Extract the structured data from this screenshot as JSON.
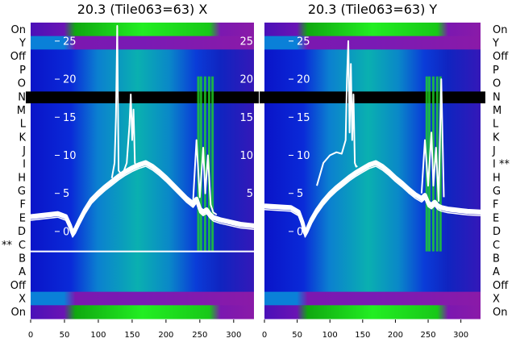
{
  "chart_data": [
    {
      "type": "heatmap",
      "title": "20.3 (Tile063=63) X",
      "row_labels": [
        "On",
        "Y",
        "Off",
        "P",
        "O",
        "N",
        "M",
        "L",
        "K",
        "J",
        "I",
        "H",
        "G",
        "F",
        "E",
        "D",
        "C",
        "B",
        "A",
        "Off",
        "X",
        "On"
      ],
      "row_markers": {
        "C": "**"
      },
      "x_ticks": [
        0,
        50,
        100,
        150,
        200,
        250,
        300
      ],
      "xlim": [
        0,
        330
      ],
      "overlay_y_ticks": [
        0,
        5,
        10,
        15,
        20,
        25
      ],
      "overlay_ylim": [
        -3.5,
        27
      ],
      "highlight_row": "C",
      "masked_row": "N",
      "series": [
        {
          "name": "",
          "x": [
            0,
            20,
            40,
            52,
            58,
            62,
            66,
            72,
            80,
            90,
            100,
            110,
            120,
            130,
            140,
            150,
            160,
            170,
            180,
            190,
            200,
            210,
            220,
            230,
            240,
            245,
            250,
            255,
            260,
            265,
            270,
            280,
            290,
            300,
            310,
            330
          ],
          "y": [
            2.0,
            2.2,
            2.4,
            2.0,
            0.8,
            -0.2,
            0.3,
            1.4,
            2.8,
            4.2,
            5.1,
            5.9,
            6.6,
            7.3,
            7.9,
            8.4,
            8.8,
            9.1,
            8.6,
            7.9,
            7.1,
            6.2,
            5.3,
            4.4,
            3.7,
            4.3,
            3.0,
            2.6,
            2.9,
            2.3,
            1.9,
            1.6,
            1.4,
            1.2,
            1.0,
            0.8
          ]
        },
        {
          "name": "",
          "x": [
            120,
            124,
            126,
            128,
            130,
            134,
            138,
            142,
            146,
            148,
            150,
            152,
            154,
            156,
            160
          ],
          "y": [
            7.0,
            9.0,
            15.0,
            27.0,
            8.0,
            7.5,
            8.0,
            9.0,
            14.0,
            18.0,
            12.0,
            16.0,
            9.0,
            8.5,
            8.8
          ]
        },
        {
          "name": "",
          "x": [
            240,
            245,
            250,
            255,
            258,
            262,
            266,
            270,
            275
          ],
          "y": [
            4.0,
            12.0,
            4.5,
            11.0,
            5.0,
            10.0,
            3.5,
            2.5,
            2.2
          ]
        }
      ],
      "band_colors": {
        "top_stripe": "#7b18b0",
        "middle": "#0b3fd8",
        "hot": "#22dd22",
        "mask": "#000000",
        "line": "#ffffff"
      }
    },
    {
      "type": "heatmap",
      "title": "20.3 (Tile063=63) Y",
      "row_labels": [
        "On",
        "Y",
        "Off",
        "P",
        "O",
        "N",
        "M",
        "L",
        "K",
        "J",
        "I",
        "H",
        "G",
        "F",
        "E",
        "D",
        "C",
        "B",
        "A",
        "Off",
        "X",
        "On"
      ],
      "row_markers": {
        "I": "**"
      },
      "x_ticks": [
        0,
        50,
        100,
        150,
        200,
        250,
        300
      ],
      "xlim": [
        0,
        330
      ],
      "overlay_y_ticks": [
        0,
        5,
        10,
        15,
        20,
        25
      ],
      "overlay_ylim": [
        -3.5,
        27
      ],
      "highlight_row": "",
      "masked_row": "N",
      "series": [
        {
          "name": "",
          "x": [
            0,
            20,
            40,
            52,
            58,
            62,
            66,
            72,
            80,
            90,
            100,
            110,
            120,
            130,
            140,
            150,
            160,
            170,
            180,
            190,
            200,
            210,
            220,
            230,
            240,
            245,
            250,
            255,
            260,
            265,
            270,
            280,
            290,
            300,
            310,
            330
          ],
          "y": [
            3.4,
            3.3,
            3.2,
            2.6,
            1.2,
            -0.2,
            0.4,
            1.6,
            2.8,
            4.0,
            5.0,
            5.8,
            6.5,
            7.2,
            7.8,
            8.3,
            8.8,
            9.1,
            8.6,
            7.9,
            7.1,
            6.4,
            5.6,
            4.9,
            4.4,
            4.8,
            3.8,
            3.5,
            3.9,
            3.4,
            3.2,
            3.0,
            2.9,
            2.8,
            2.7,
            2.6
          ]
        },
        {
          "name": "",
          "x": [
            80,
            90,
            100,
            110,
            118,
            124,
            126,
            128,
            130,
            132,
            134,
            136,
            138,
            140,
            142
          ],
          "y": [
            6.0,
            9.0,
            10.0,
            10.4,
            10.2,
            12.0,
            20.0,
            25.0,
            13.0,
            22.0,
            12.0,
            18.0,
            9.0,
            8.5,
            8.6
          ]
        },
        {
          "name": "",
          "x": [
            240,
            245,
            250,
            255,
            258,
            262,
            266,
            270,
            274
          ],
          "y": [
            5.0,
            12.0,
            6.0,
            13.0,
            6.0,
            11.0,
            4.0,
            20.0,
            4.5
          ]
        }
      ],
      "band_colors": {
        "top_stripe": "#7b18b0",
        "middle": "#0b3fd8",
        "hot": "#22dd22",
        "mask": "#000000",
        "line": "#ffffff"
      }
    }
  ]
}
